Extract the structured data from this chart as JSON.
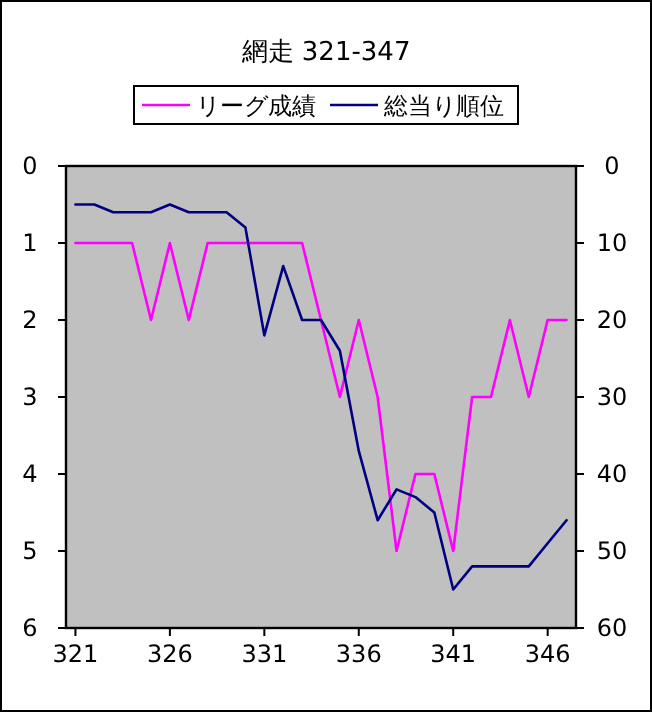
{
  "chart_data": {
    "type": "line",
    "title": "網走 321-347",
    "x": [
      321,
      322,
      323,
      324,
      325,
      326,
      327,
      328,
      329,
      330,
      331,
      332,
      333,
      334,
      335,
      336,
      337,
      338,
      339,
      340,
      341,
      342,
      343,
      344,
      345,
      346,
      347
    ],
    "series": [
      {
        "name": "リーグ成績",
        "color": "#ff00ff",
        "values": [
          1,
          1,
          1,
          1,
          2,
          1,
          2,
          1,
          1,
          1,
          1,
          1,
          1,
          2,
          3,
          2,
          3,
          5,
          4,
          4,
          5,
          3,
          3,
          2,
          3,
          2,
          2
        ]
      },
      {
        "name": "総当り順位",
        "color": "#000080",
        "axis": "y2",
        "values": [
          5,
          5,
          6,
          6,
          6,
          5,
          6,
          6,
          6,
          8,
          22,
          13,
          20,
          20,
          24,
          37,
          46,
          42,
          43,
          45,
          55,
          52,
          52,
          52,
          52,
          49,
          46
        ]
      }
    ],
    "xlim": [
      320.5,
      347.5
    ],
    "xticks": [
      321,
      326,
      331,
      336,
      341,
      346
    ],
    "ylim": [
      6,
      0
    ],
    "yticks": [
      0,
      1,
      2,
      3,
      4,
      5,
      6
    ],
    "y2lim": [
      60,
      0
    ],
    "y2ticks": [
      0,
      10,
      20,
      30,
      40,
      50,
      60
    ],
    "legend": "top",
    "grid": false,
    "marker": "none",
    "line_style": "solid"
  }
}
